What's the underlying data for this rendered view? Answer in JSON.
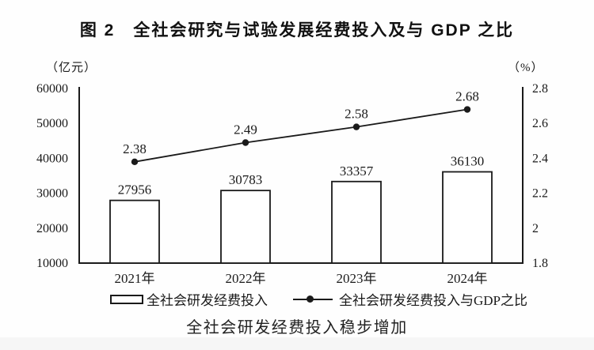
{
  "title": "图 2　全社会研究与试验发展经费投入及与 GDP 之比",
  "caption": "全社会研发经费投入稳步增加",
  "colors": {
    "foreground": "#1a1a1a",
    "background": "#ffffff",
    "bar_fill": "#ffffff"
  },
  "chart_data": {
    "type": "bar+line",
    "title": "图 2　全社会研究与试验发展经费投入及与 GDP 之比",
    "categories": [
      "2021年",
      "2022年",
      "2023年",
      "2024年"
    ],
    "series": [
      {
        "name": "全社会研发经费投入",
        "chart": "bar",
        "axis": "left",
        "values": [
          27956,
          30783,
          33357,
          36130
        ],
        "value_labels": [
          "27956",
          "30783",
          "33357",
          "36130"
        ]
      },
      {
        "name": "全社会研发经费投入与GDP之比",
        "chart": "line",
        "axis": "right",
        "values": [
          2.38,
          2.49,
          2.58,
          2.68
        ],
        "value_labels": [
          "2.38",
          "2.49",
          "2.58",
          "2.68"
        ]
      }
    ],
    "left_axis": {
      "unit": "（亿元）",
      "min": 10000,
      "max": 60000,
      "tick_labels": [
        "10000",
        "20000",
        "30000",
        "40000",
        "50000",
        "60000"
      ]
    },
    "right_axis": {
      "unit": "（%）",
      "min": 1.8,
      "max": 2.8,
      "tick_labels": [
        "1.8",
        "2",
        "2.2",
        "2.4",
        "2.6",
        "2.8"
      ]
    },
    "legend_position": "bottom",
    "grid": false,
    "xlabel": "",
    "ylabel_left": "亿元",
    "ylabel_right": "%"
  }
}
